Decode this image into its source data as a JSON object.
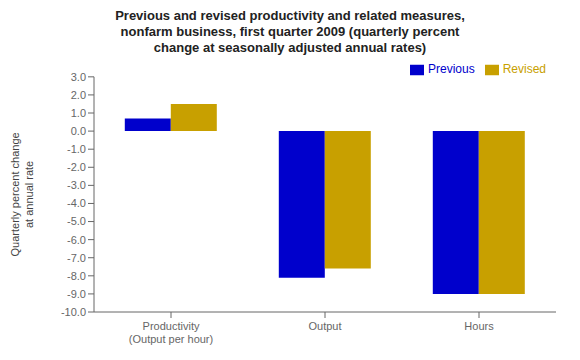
{
  "chart_data": {
    "type": "bar",
    "title": "Previous and revised productivity and related measures,\nnonfarm business, first quarter 2009 (quarterly percent\nchange at seasonally adjusted annual rates)",
    "categories": [
      "Productivity\n(Output per hour)",
      "Output",
      "Hours"
    ],
    "series": [
      {
        "name": "Previous",
        "color": "#0000cc",
        "values": [
          0.7,
          -8.1,
          -9.0
        ]
      },
      {
        "name": "Revised",
        "color": "#c8a000",
        "values": [
          1.5,
          -7.6,
          -9.0
        ]
      }
    ],
    "ylabel": "Quarterly percent change\nat annual rate",
    "ylim": [
      -10.0,
      3.0
    ],
    "yticks": [
      {
        "value": -10.0,
        "label": "-10.0"
      },
      {
        "value": -9.0,
        "label": "-9.0"
      },
      {
        "value": -8.0,
        "label": "-8.0"
      },
      {
        "value": -7.0,
        "label": "-7.0"
      },
      {
        "value": -6.0,
        "label": "-6.0"
      },
      {
        "value": -5.0,
        "label": "-5.0"
      },
      {
        "value": -4.0,
        "label": "-4.0"
      },
      {
        "value": -3.0,
        "label": "-3.0"
      },
      {
        "value": -2.0,
        "label": "-2.0"
      },
      {
        "value": -1.0,
        "label": "-1.0"
      },
      {
        "value": 0.0,
        "label": "0.0"
      },
      {
        "value": 1.0,
        "label": "1.0"
      },
      {
        "value": 2.0,
        "label": "2.0"
      },
      {
        "value": 3.0,
        "label": "3.0"
      }
    ],
    "legend": "upper right",
    "grid": false
  }
}
